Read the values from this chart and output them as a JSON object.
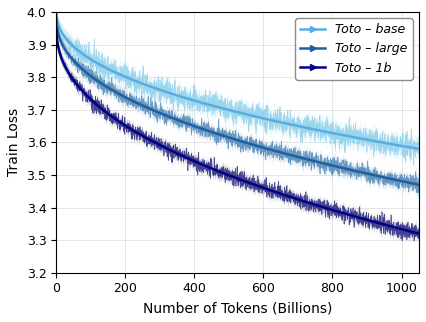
{
  "title": "",
  "xlabel": "Number of Tokens (Billions)",
  "ylabel": "Train Loss",
  "xlim": [
    0,
    1050
  ],
  "ylim": [
    3.2,
    4.0
  ],
  "xticks": [
    0,
    200,
    400,
    600,
    800,
    1000
  ],
  "yticks": [
    3.2,
    3.3,
    3.4,
    3.5,
    3.6,
    3.7,
    3.8,
    3.9,
    4.0
  ],
  "legend_labels": [
    "Toto – base",
    "Toto – large",
    "Toto – 1b"
  ],
  "fill_colors": [
    "#87CEEB",
    "#4682B4",
    "#191970"
  ],
  "line_colors": [
    "#5AACE0",
    "#2060A0",
    "#00008B"
  ],
  "n_points": 2000,
  "base_start": 4.0,
  "base_end": 3.58,
  "large_start": 3.98,
  "large_end": 3.47,
  "oneb_start": 3.95,
  "oneb_end": 3.32,
  "noise_base": 0.018,
  "noise_large": 0.012,
  "noise_oneb": 0.012,
  "band_base": 0.025,
  "band_large": 0.018,
  "band_oneb": 0.016,
  "figsize": [
    4.26,
    3.22
  ],
  "dpi": 100
}
